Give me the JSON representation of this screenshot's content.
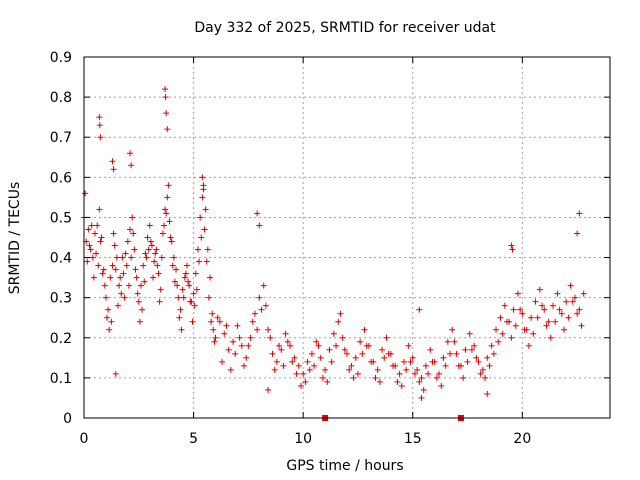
{
  "chart_data": {
    "type": "scatter",
    "title": "Day 332 of 2025, SRMTID for receiver udat",
    "xlabel": "GPS time / hours",
    "ylabel": "SRMTID / TECUs",
    "xlim": [
      0,
      24
    ],
    "ylim": [
      0,
      0.9
    ],
    "xticks": [
      0,
      5,
      10,
      15,
      20
    ],
    "yticks": [
      0,
      0.1,
      0.2,
      0.3,
      0.4,
      0.5,
      0.6,
      0.7,
      0.8,
      0.9
    ],
    "xtick_labels": [
      "0",
      "5",
      "10",
      "15",
      "20"
    ],
    "ytick_labels": [
      "0",
      "0.1",
      "0.2",
      "0.3",
      "0.4",
      "0.5",
      "0.6",
      "0.7",
      "0.8",
      "0.9"
    ],
    "grid": true,
    "marker": "+",
    "color": "#e00000",
    "series": [
      {
        "name": "SRMTID",
        "x": [
          0.0,
          0.1,
          0.2,
          0.3,
          0.4,
          0.5,
          0.6,
          0.7,
          0.8,
          0.9,
          1.0,
          1.1,
          1.2,
          1.3,
          1.4,
          1.5,
          1.6,
          1.7,
          1.8,
          1.9,
          2.0,
          2.1,
          2.2,
          2.3,
          2.4,
          2.5,
          2.6,
          2.7,
          2.8,
          2.9,
          3.0,
          3.1,
          3.2,
          3.3,
          3.4,
          3.5,
          3.6,
          3.7,
          3.8,
          3.9,
          4.0,
          4.1,
          4.2,
          4.3,
          4.4,
          4.5,
          4.6,
          4.7,
          4.8,
          4.9,
          5.0,
          5.1,
          5.2,
          5.3,
          5.4,
          5.5,
          5.6,
          5.7,
          5.8,
          5.9,
          6.0,
          6.2,
          6.4,
          6.6,
          6.8,
          7.0,
          7.2,
          7.4,
          7.6,
          7.8,
          8.0,
          8.2,
          8.4,
          8.6,
          8.8,
          9.0,
          9.2,
          9.4,
          9.6,
          9.8,
          10.0,
          10.2,
          10.4,
          10.6,
          10.8,
          11.0,
          11.2,
          11.4,
          11.6,
          11.8,
          12.0,
          12.2,
          12.4,
          12.6,
          12.8,
          13.0,
          13.2,
          13.4,
          13.6,
          13.8,
          14.0,
          14.2,
          14.4,
          14.6,
          14.8,
          15.0,
          15.2,
          15.4,
          15.6,
          15.8,
          16.0,
          16.2,
          16.4,
          16.6,
          16.8,
          17.0,
          17.2,
          17.4,
          17.6,
          17.8,
          18.0,
          18.2,
          18.4,
          18.6,
          18.8,
          19.0,
          19.2,
          19.4,
          19.6,
          19.8,
          20.0,
          20.2,
          20.4,
          20.6,
          20.8,
          21.0,
          21.2,
          21.4,
          21.6,
          21.8,
          22.0,
          22.2,
          22.4,
          22.6,
          22.8,
          0.05,
          0.15,
          0.25,
          0.35,
          0.45,
          0.55,
          0.65,
          0.75,
          0.85,
          0.95,
          1.05,
          1.15,
          1.25,
          1.35,
          1.45,
          1.55,
          1.65,
          1.75,
          1.85,
          1.95,
          2.05,
          2.15,
          2.25,
          2.35,
          2.45,
          2.55,
          2.65,
          2.75,
          2.85,
          2.95,
          3.05,
          3.15,
          3.25,
          3.35,
          3.45,
          3.55,
          3.65,
          3.75,
          3.85,
          3.95,
          4.05,
          4.15,
          4.25,
          4.35,
          4.45,
          4.55,
          4.65,
          4.75,
          4.85,
          4.95,
          5.05,
          5.15,
          5.25,
          5.35,
          5.45,
          5.55,
          5.65,
          5.75,
          5.85,
          5.95,
          6.1,
          6.3,
          6.5,
          6.7,
          6.9,
          7.1,
          7.3,
          7.5,
          7.7,
          7.9,
          8.1,
          8.3,
          8.5,
          8.7,
          8.9,
          9.1,
          9.3,
          9.5,
          9.7,
          9.9,
          10.1,
          10.3,
          10.5,
          10.7,
          10.9,
          11.1,
          11.3,
          11.5,
          11.7,
          11.9,
          12.1,
          12.3,
          12.5,
          12.7,
          12.9,
          13.1,
          13.3,
          13.5,
          13.7,
          13.9,
          14.1,
          14.3,
          14.5,
          14.7,
          14.9,
          15.1,
          15.3,
          15.5,
          15.7,
          15.9,
          16.1,
          16.3,
          16.5,
          16.7,
          16.9,
          17.1,
          17.3,
          17.5,
          17.7,
          17.9,
          18.1,
          18.3,
          18.5,
          18.7,
          18.9,
          19.1,
          19.3,
          19.5,
          19.7,
          19.9,
          20.1,
          20.3,
          20.5,
          20.7,
          20.9,
          21.1,
          21.3,
          21.5,
          21.7,
          21.9,
          22.1,
          22.3,
          22.5,
          22.7,
          0.7,
          0.72,
          0.75,
          1.3,
          1.35,
          2.1,
          2.15,
          3.7,
          3.72,
          3.75,
          3.8,
          5.4,
          5.45,
          7.9,
          8.0,
          19.5,
          19.55,
          22.6,
          22.5,
          1.45,
          8.4,
          18.4,
          15.4,
          15.3
        ],
        "y": [
          0.5,
          0.44,
          0.47,
          0.42,
          0.4,
          0.46,
          0.48,
          0.52,
          0.45,
          0.37,
          0.3,
          0.27,
          0.35,
          0.38,
          0.43,
          0.4,
          0.33,
          0.31,
          0.36,
          0.41,
          0.44,
          0.47,
          0.5,
          0.42,
          0.35,
          0.29,
          0.33,
          0.38,
          0.41,
          0.45,
          0.48,
          0.43,
          0.39,
          0.42,
          0.36,
          0.32,
          0.46,
          0.52,
          0.55,
          0.49,
          0.44,
          0.4,
          0.37,
          0.3,
          0.27,
          0.32,
          0.35,
          0.38,
          0.33,
          0.29,
          0.31,
          0.36,
          0.42,
          0.5,
          0.55,
          0.47,
          0.39,
          0.3,
          0.24,
          0.22,
          0.2,
          0.24,
          0.21,
          0.17,
          0.19,
          0.23,
          0.18,
          0.15,
          0.2,
          0.26,
          0.3,
          0.33,
          0.22,
          0.16,
          0.14,
          0.17,
          0.21,
          0.18,
          0.15,
          0.13,
          0.11,
          0.14,
          0.16,
          0.19,
          0.15,
          0.12,
          0.17,
          0.21,
          0.24,
          0.2,
          0.16,
          0.13,
          0.15,
          0.19,
          0.22,
          0.18,
          0.14,
          0.12,
          0.17,
          0.2,
          0.16,
          0.13,
          0.11,
          0.14,
          0.18,
          0.15,
          0.12,
          0.1,
          0.13,
          0.17,
          0.14,
          0.11,
          0.15,
          0.19,
          0.22,
          0.16,
          0.13,
          0.17,
          0.21,
          0.18,
          0.14,
          0.12,
          0.15,
          0.18,
          0.22,
          0.25,
          0.28,
          0.24,
          0.27,
          0.31,
          0.26,
          0.22,
          0.25,
          0.29,
          0.32,
          0.27,
          0.24,
          0.28,
          0.31,
          0.26,
          0.29,
          0.33,
          0.3,
          0.27,
          0.31,
          0.56,
          0.39,
          0.43,
          0.48,
          0.35,
          0.41,
          0.38,
          0.44,
          0.36,
          0.33,
          0.25,
          0.22,
          0.24,
          0.46,
          0.37,
          0.28,
          0.35,
          0.4,
          0.3,
          0.38,
          0.33,
          0.4,
          0.46,
          0.37,
          0.31,
          0.24,
          0.27,
          0.34,
          0.4,
          0.42,
          0.44,
          0.35,
          0.41,
          0.38,
          0.29,
          0.4,
          0.48,
          0.51,
          0.58,
          0.45,
          0.38,
          0.34,
          0.33,
          0.25,
          0.22,
          0.3,
          0.36,
          0.34,
          0.29,
          0.24,
          0.28,
          0.32,
          0.39,
          0.45,
          0.58,
          0.52,
          0.42,
          0.35,
          0.26,
          0.19,
          0.25,
          0.14,
          0.23,
          0.12,
          0.16,
          0.2,
          0.13,
          0.18,
          0.24,
          0.22,
          0.27,
          0.28,
          0.2,
          0.12,
          0.18,
          0.13,
          0.19,
          0.14,
          0.11,
          0.08,
          0.09,
          0.12,
          0.13,
          0.18,
          0.1,
          0.09,
          0.14,
          0.18,
          0.26,
          0.17,
          0.12,
          0.1,
          0.11,
          0.16,
          0.18,
          0.14,
          0.1,
          0.09,
          0.15,
          0.16,
          0.13,
          0.09,
          0.08,
          0.12,
          0.14,
          0.11,
          0.09,
          0.07,
          0.11,
          0.14,
          0.1,
          0.08,
          0.13,
          0.16,
          0.19,
          0.13,
          0.1,
          0.14,
          0.17,
          0.15,
          0.11,
          0.1,
          0.13,
          0.16,
          0.19,
          0.21,
          0.24,
          0.2,
          0.23,
          0.27,
          0.22,
          0.18,
          0.21,
          0.25,
          0.28,
          0.23,
          0.2,
          0.24,
          0.27,
          0.22,
          0.25,
          0.29,
          0.26,
          0.23,
          0.75,
          0.73,
          0.7,
          0.64,
          0.62,
          0.66,
          0.63,
          0.82,
          0.8,
          0.76,
          0.72,
          0.6,
          0.57,
          0.51,
          0.48,
          0.43,
          0.42,
          0.51,
          0.46,
          0.11,
          0.07,
          0.06,
          0.05,
          0.27
        ]
      }
    ],
    "markers_on_axis_x": [
      11.0,
      17.2
    ]
  }
}
